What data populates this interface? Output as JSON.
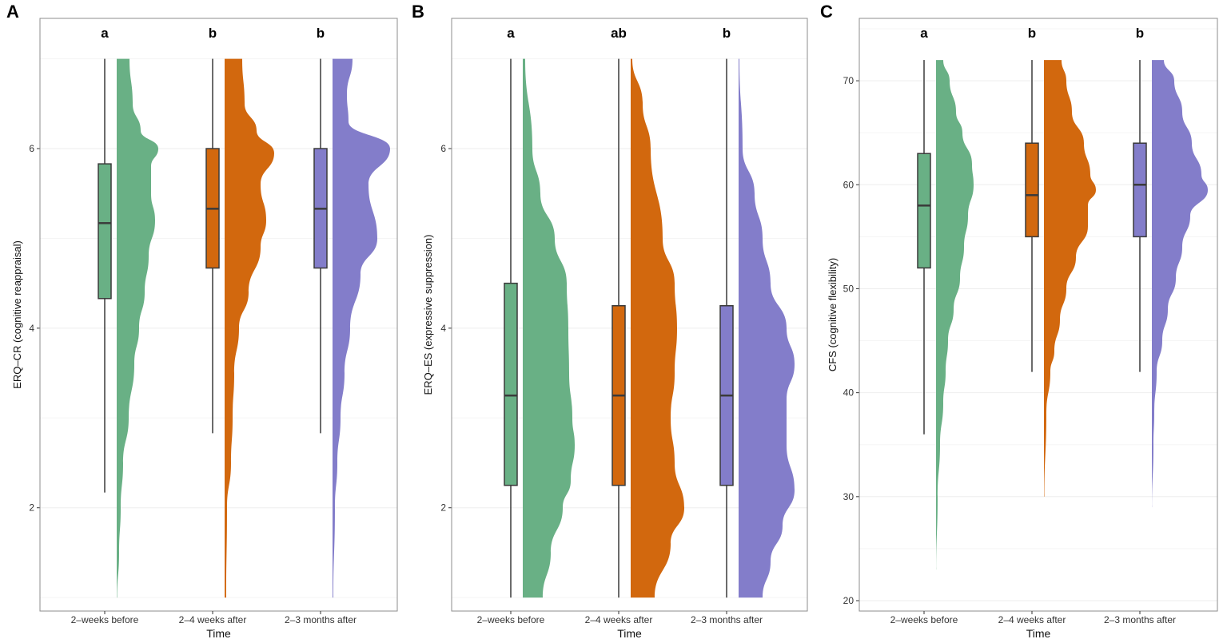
{
  "colors": {
    "g1": "#69b085",
    "g2": "#d2680e",
    "g3": "#837dca",
    "box_line": "#3a3a3a",
    "grid": "#eeeeee",
    "frame": "#8c8c8c"
  },
  "chart_data": [
    {
      "panel_label": "A",
      "type": "raincloud",
      "ylabel": "ERQ–CR (cognitive reappraisal)",
      "xlabel": "Time",
      "categories": [
        "2–weeks before",
        "2–4 weeks after",
        "2–3 months after"
      ],
      "letters": [
        "a",
        "b",
        "b"
      ],
      "ylim": [
        0.85,
        7.45
      ],
      "yticks": [
        2,
        4,
        6
      ],
      "minor_ticks": [
        1,
        3,
        5,
        7
      ],
      "boxes": [
        {
          "min": 2.17,
          "q1": 4.33,
          "median": 5.17,
          "q3": 5.83,
          "max": 7
        },
        {
          "min": 2.83,
          "q1": 4.67,
          "median": 5.33,
          "q3": 6,
          "max": 7
        },
        {
          "min": 2.83,
          "q1": 4.67,
          "median": 5.33,
          "q3": 6,
          "max": 7
        }
      ],
      "density": [
        [
          [
            7,
            1.6
          ],
          [
            6.5,
            2.0
          ],
          [
            6.2,
            3.0
          ],
          [
            6.0,
            5.2
          ],
          [
            5.8,
            4.3
          ],
          [
            5.5,
            4.3
          ],
          [
            5.2,
            4.8
          ],
          [
            4.8,
            4.0
          ],
          [
            4.4,
            3.5
          ],
          [
            4.0,
            2.8
          ],
          [
            3.6,
            2.2
          ],
          [
            3.0,
            1.5
          ],
          [
            2.5,
            0.8
          ],
          [
            2.0,
            0.5
          ],
          [
            1.5,
            0.3
          ],
          [
            1,
            0.05
          ]
        ],
        [
          [
            7,
            2.2
          ],
          [
            6.5,
            2.5
          ],
          [
            6.2,
            4.0
          ],
          [
            5.95,
            6.2
          ],
          [
            5.6,
            4.5
          ],
          [
            5.2,
            5.2
          ],
          [
            4.9,
            4.5
          ],
          [
            4.4,
            3.0
          ],
          [
            4.0,
            1.8
          ],
          [
            3.5,
            1.2
          ],
          [
            3.0,
            1.0
          ],
          [
            2.5,
            0.8
          ],
          [
            2.0,
            0.3
          ],
          [
            1,
            0.2
          ]
        ],
        [
          [
            7,
            2.5
          ],
          [
            6.6,
            1.8
          ],
          [
            6.3,
            2.0
          ],
          [
            6.0,
            7.2
          ],
          [
            5.6,
            4.5
          ],
          [
            5.0,
            5.6
          ],
          [
            4.6,
            3.5
          ],
          [
            4.0,
            2.2
          ],
          [
            3.5,
            1.5
          ],
          [
            3.0,
            1.0
          ],
          [
            2.5,
            0.6
          ],
          [
            2.0,
            0.3
          ],
          [
            1,
            0.1
          ]
        ]
      ]
    },
    {
      "panel_label": "B",
      "type": "raincloud",
      "ylabel": "ERQ–ES (expressive suppression)",
      "xlabel": "Time",
      "categories": [
        "2–weeks before",
        "2–4 weeks after",
        "2–3 months after"
      ],
      "letters": [
        "a",
        "ab",
        "b"
      ],
      "ylim": [
        0.85,
        7.45
      ],
      "yticks": [
        2,
        4,
        6
      ],
      "minor_ticks": [
        1,
        3,
        5,
        7
      ],
      "boxes": [
        {
          "min": 1,
          "q1": 2.25,
          "median": 3.25,
          "q3": 4.5,
          "max": 7
        },
        {
          "min": 1,
          "q1": 2.25,
          "median": 3.25,
          "q3": 4.25,
          "max": 7
        },
        {
          "min": 1,
          "q1": 2.25,
          "median": 3.25,
          "q3": 4.25,
          "max": 7
        }
      ],
      "density": [
        [
          [
            7,
            0.3
          ],
          [
            6,
            1.2
          ],
          [
            5.5,
            2.2
          ],
          [
            5.0,
            4.0
          ],
          [
            4.5,
            5.5
          ],
          [
            4.0,
            5.7
          ],
          [
            3.5,
            5.8
          ],
          [
            3.0,
            6.2
          ],
          [
            2.7,
            6.5
          ],
          [
            2.3,
            6.0
          ],
          [
            2.0,
            5.0
          ],
          [
            1.5,
            3.5
          ],
          [
            1.0,
            2.5
          ]
        ],
        [
          [
            7,
            0.2
          ],
          [
            6.5,
            1.5
          ],
          [
            6.0,
            2.5
          ],
          [
            5.0,
            4.0
          ],
          [
            4.5,
            5.5
          ],
          [
            4.0,
            5.8
          ],
          [
            3.5,
            5.5
          ],
          [
            3.0,
            5.0
          ],
          [
            2.5,
            5.5
          ],
          [
            2.0,
            6.7
          ],
          [
            1.6,
            5.0
          ],
          [
            1.0,
            3.0
          ]
        ],
        [
          [
            7,
            0.1
          ],
          [
            6,
            0.5
          ],
          [
            5.5,
            2.0
          ],
          [
            5,
            3.0
          ],
          [
            4.5,
            4.0
          ],
          [
            4,
            6.0
          ],
          [
            3.6,
            7.0
          ],
          [
            3.2,
            6.0
          ],
          [
            2.7,
            6.0
          ],
          [
            2.2,
            7.0
          ],
          [
            1.8,
            5.5
          ],
          [
            1.4,
            4.0
          ],
          [
            1.0,
            3.0
          ]
        ]
      ]
    },
    {
      "panel_label": "C",
      "type": "raincloud",
      "ylabel": "CFS (cognitive flexibility)",
      "xlabel": "Time",
      "categories": [
        "2–weeks before",
        "2–4 weeks after",
        "2–3 months after"
      ],
      "letters": [
        "a",
        "b",
        "b"
      ],
      "ylim": [
        19,
        76
      ],
      "yticks": [
        20,
        30,
        40,
        50,
        60,
        70
      ],
      "minor_ticks": [
        25,
        35,
        45,
        55,
        65,
        75
      ],
      "boxes": [
        {
          "min": 36,
          "q1": 52,
          "median": 58,
          "q3": 63,
          "max": 72
        },
        {
          "min": 42,
          "q1": 55,
          "median": 59,
          "q3": 64,
          "max": 72
        },
        {
          "min": 42,
          "q1": 55,
          "median": 60,
          "q3": 64,
          "max": 72
        }
      ],
      "density": [
        [
          [
            72,
            0.9
          ],
          [
            70,
            1.7
          ],
          [
            67,
            2.5
          ],
          [
            65,
            3.3
          ],
          [
            62,
            4.5
          ],
          [
            60,
            4.7
          ],
          [
            57,
            4.0
          ],
          [
            54,
            3.5
          ],
          [
            51,
            3.0
          ],
          [
            48,
            2.2
          ],
          [
            45,
            1.5
          ],
          [
            42,
            1.2
          ],
          [
            39,
            0.9
          ],
          [
            35,
            0.5
          ],
          [
            30,
            0.2
          ],
          [
            23,
            0.02
          ]
        ],
        [
          [
            72,
            2.2
          ],
          [
            70,
            2.8
          ],
          [
            67,
            3.5
          ],
          [
            64,
            5.0
          ],
          [
            61,
            5.8
          ],
          [
            59.5,
            6.5
          ],
          [
            58,
            5.5
          ],
          [
            56,
            5.5
          ],
          [
            53,
            4.0
          ],
          [
            50,
            2.8
          ],
          [
            47,
            2.0
          ],
          [
            44,
            1.3
          ],
          [
            42,
            0.8
          ],
          [
            38,
            0.3
          ],
          [
            30,
            0.05
          ]
        ],
        [
          [
            72,
            1.5
          ],
          [
            70,
            2.8
          ],
          [
            67,
            3.8
          ],
          [
            64,
            5.0
          ],
          [
            61,
            6.2
          ],
          [
            59.5,
            7.0
          ],
          [
            57,
            4.8
          ],
          [
            54,
            3.8
          ],
          [
            51,
            3.0
          ],
          [
            48,
            2.0
          ],
          [
            45,
            1.3
          ],
          [
            42,
            0.6
          ],
          [
            38,
            0.3
          ],
          [
            35,
            0.2
          ],
          [
            29,
            0.02
          ]
        ]
      ]
    }
  ]
}
